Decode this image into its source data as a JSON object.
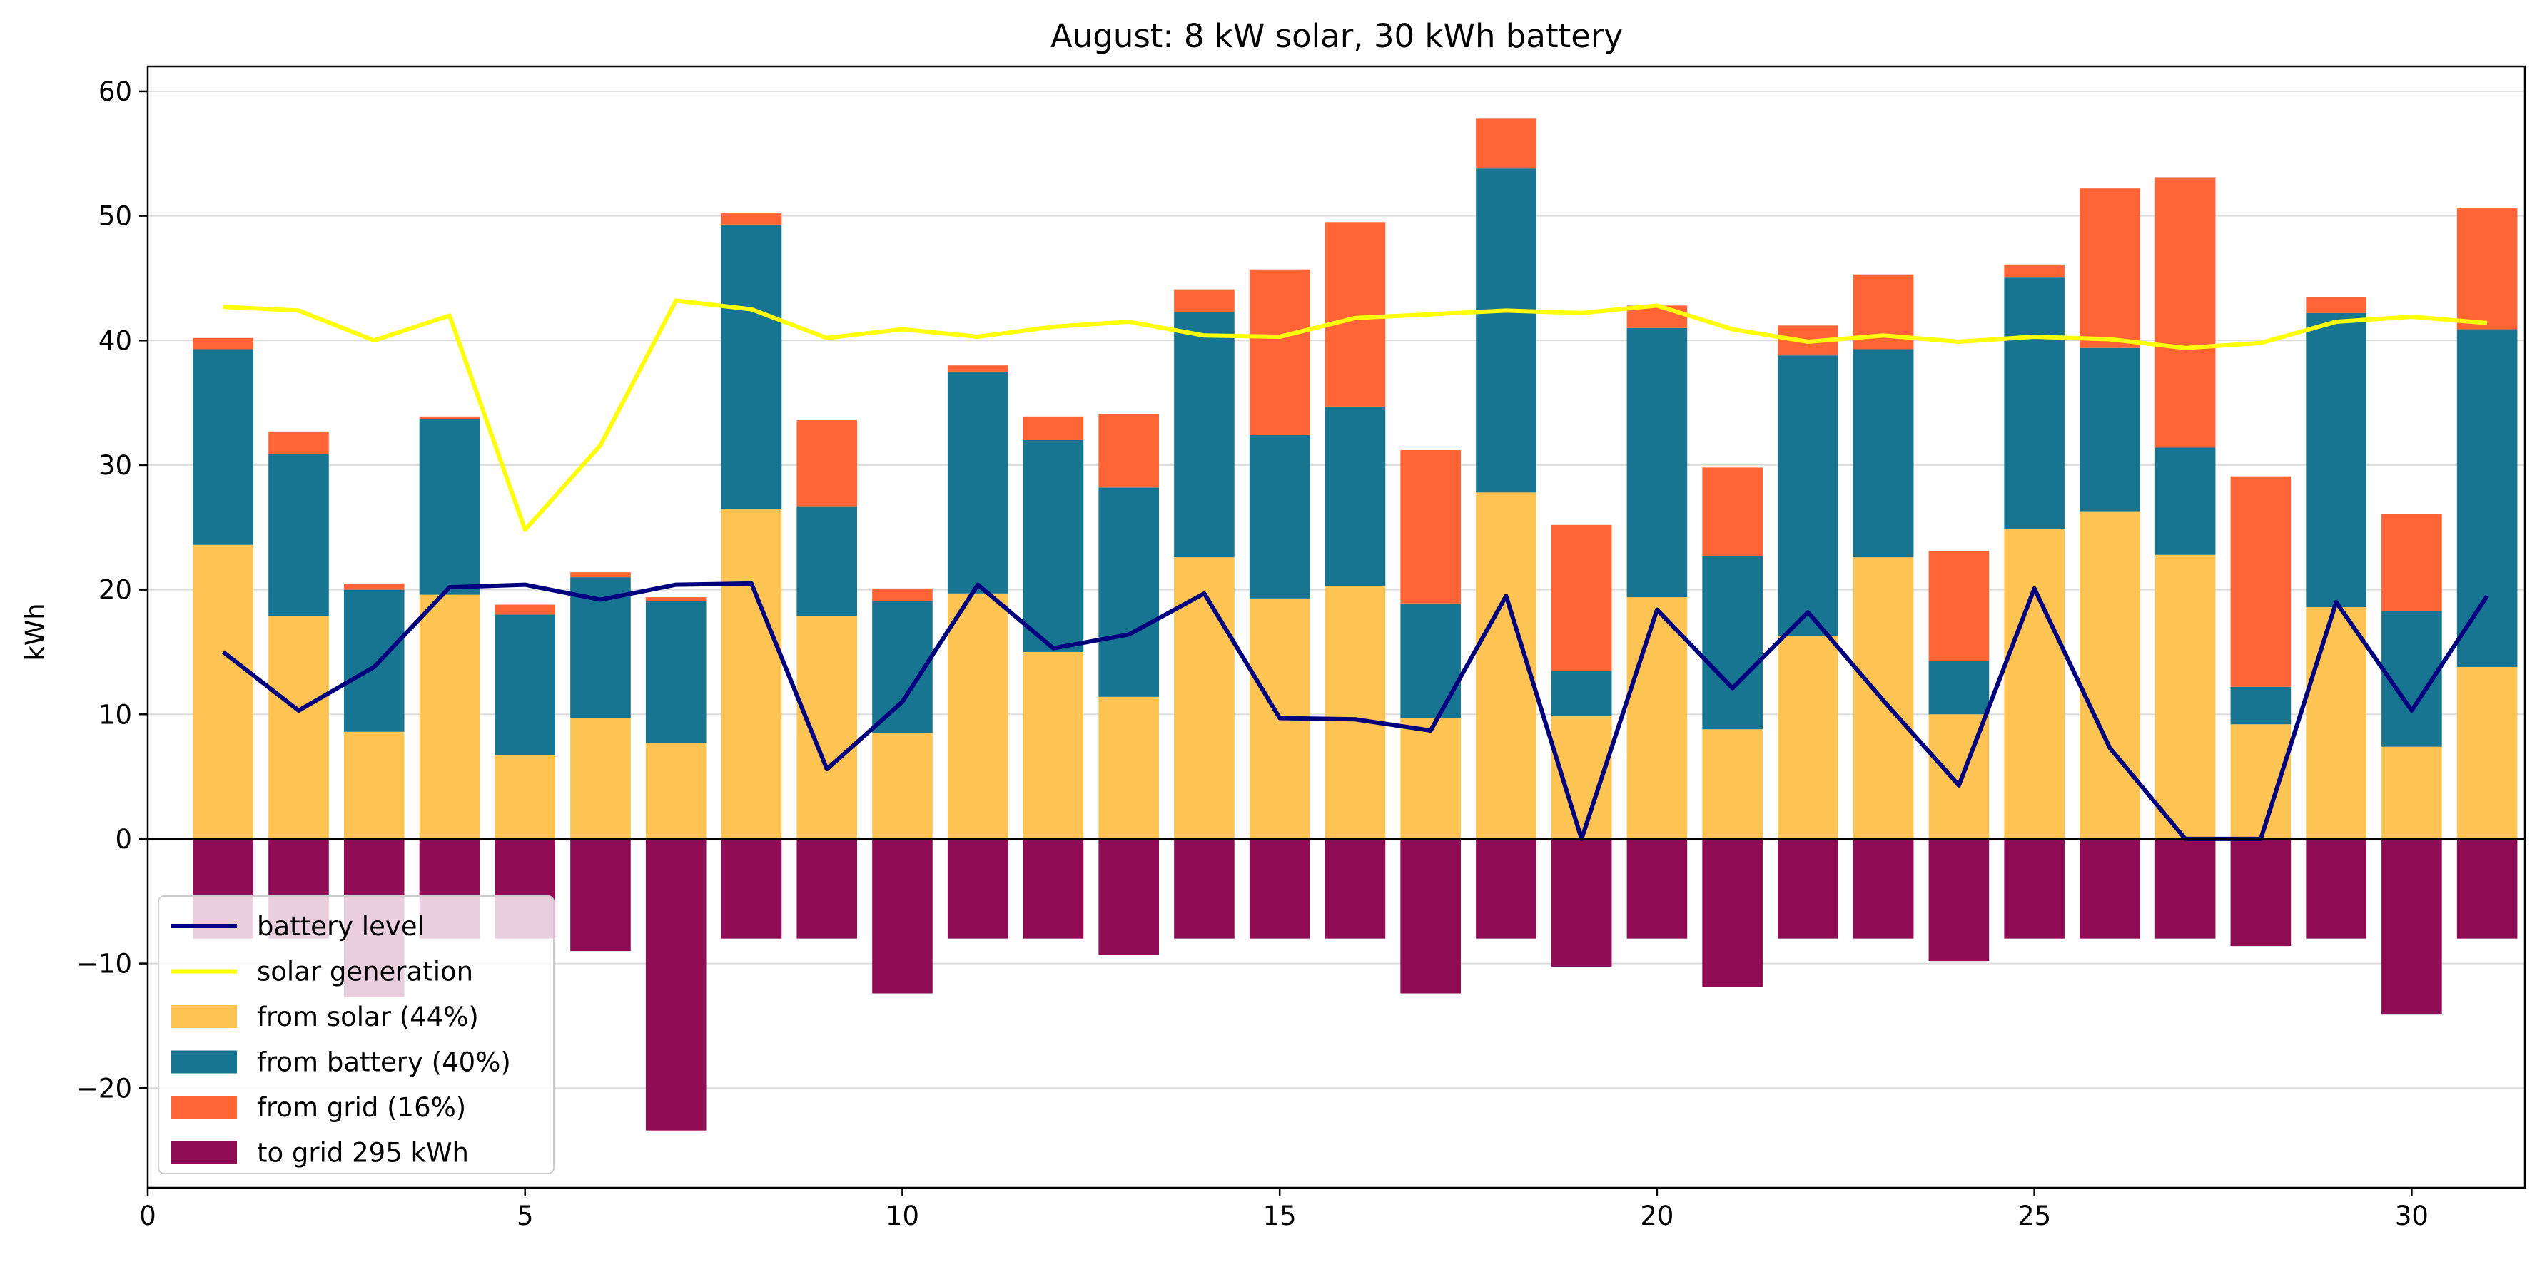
{
  "chart_data": {
    "type": "bar",
    "title": "August: 8 kW solar, 30 kWh battery",
    "xlabel": "",
    "ylabel": "kWh",
    "xlim": [
      0,
      31.5
    ],
    "ylim": [
      -28,
      62
    ],
    "xticks": [
      0,
      5,
      10,
      15,
      20,
      25,
      30
    ],
    "yticks": [
      -20,
      -10,
      0,
      10,
      20,
      30,
      40,
      50,
      60
    ],
    "grid": "horizontal",
    "legend_position": "bottom-left",
    "x": [
      1,
      2,
      3,
      4,
      5,
      6,
      7,
      8,
      9,
      10,
      11,
      12,
      13,
      14,
      15,
      16,
      17,
      18,
      19,
      20,
      21,
      22,
      23,
      24,
      25,
      26,
      27,
      28,
      29,
      30,
      31
    ],
    "stacked_series": [
      {
        "name": "from solar (44%)",
        "color": "#fdc453",
        "values": [
          23.6,
          17.9,
          8.6,
          19.6,
          6.7,
          9.7,
          7.7,
          26.5,
          17.9,
          8.5,
          19.7,
          15.0,
          11.4,
          22.6,
          19.3,
          20.3,
          9.7,
          27.8,
          9.9,
          19.4,
          8.8,
          16.3,
          22.6,
          10.0,
          24.9,
          26.3,
          22.8,
          9.2,
          18.6,
          7.4,
          13.8
        ]
      },
      {
        "name": "from battery (40%)",
        "color": "#177591",
        "values": [
          15.7,
          13.0,
          11.4,
          14.1,
          11.3,
          11.3,
          11.4,
          22.8,
          8.8,
          10.6,
          17.8,
          17.0,
          16.8,
          19.7,
          13.1,
          14.4,
          9.2,
          26.0,
          3.6,
          21.6,
          13.9,
          22.5,
          16.7,
          4.3,
          20.2,
          13.1,
          8.6,
          3.0,
          23.6,
          10.9,
          27.1
        ]
      },
      {
        "name": "from grid (16%)",
        "color": "#fe6436",
        "values": [
          0.9,
          1.8,
          0.5,
          0.2,
          0.8,
          0.4,
          0.3,
          0.9,
          6.9,
          1.0,
          0.5,
          1.9,
          5.9,
          1.8,
          13.3,
          14.8,
          12.3,
          4.0,
          11.7,
          1.8,
          7.1,
          2.4,
          6.0,
          8.8,
          1.0,
          12.8,
          21.7,
          16.9,
          1.3,
          7.8,
          9.7
        ]
      }
    ],
    "export_series": {
      "name": "to grid 295 kWh",
      "color": "#8f0c55",
      "values": [
        -8.0,
        -8.0,
        -12.7,
        -8.0,
        -8.0,
        -9.0,
        -23.4,
        -8.0,
        -8.0,
        -12.4,
        -8.0,
        -8.0,
        -9.3,
        -8.0,
        -8.0,
        -8.0,
        -12.4,
        -8.0,
        -10.3,
        -8.0,
        -11.9,
        -8.0,
        -8.0,
        -9.8,
        -8.0,
        -8.0,
        -8.0,
        -8.6,
        -8.0,
        -14.1,
        -8.0
      ]
    },
    "line_series": [
      {
        "name": "battery level",
        "color": "#00007f",
        "values": [
          15.0,
          10.3,
          13.8,
          20.2,
          20.4,
          19.2,
          20.4,
          20.5,
          5.6,
          11.0,
          20.4,
          15.3,
          16.4,
          19.7,
          9.7,
          9.6,
          8.7,
          19.5,
          0.0,
          18.4,
          12.1,
          18.2,
          11.1,
          4.3,
          20.1,
          7.3,
          0.0,
          0.0,
          19.0,
          10.3,
          19.5
        ]
      },
      {
        "name": "solar generation",
        "color": "#ffff0a",
        "values": [
          42.7,
          42.4,
          40.0,
          42.0,
          24.8,
          31.6,
          43.2,
          42.5,
          40.2,
          40.9,
          40.3,
          41.1,
          41.5,
          40.4,
          40.3,
          41.8,
          42.1,
          42.4,
          42.2,
          42.8,
          40.9,
          39.9,
          40.4,
          39.9,
          40.3,
          40.1,
          39.4,
          39.8,
          41.5,
          41.9,
          41.4
        ]
      }
    ],
    "bar_width": 0.8
  }
}
